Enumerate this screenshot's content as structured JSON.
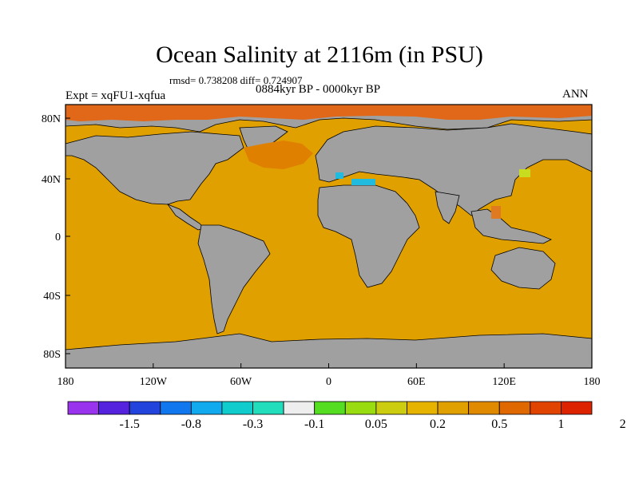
{
  "title": "Ocean Salinity at 2116m (in PSU)",
  "stats_text": "rmsd= 0.738208 diff= 0.724907",
  "period": "0884kyr BP - 0000kyr BP",
  "experiment": "Expt = xqFU1-xqfua",
  "season": "ANN",
  "colors": {
    "land": "#a0a0a0",
    "ocean_main": "#e0a000",
    "arctic": "#e06818",
    "north_atlantic": "#e08000",
    "med": "#22bbe0",
    "japan_sea": "#c8dc20",
    "south_china_sea": "#e07a20"
  },
  "axes": {
    "x_ticks": [
      "180",
      "120W",
      "60W",
      "0",
      "60E",
      "120E",
      "180"
    ],
    "y_ticks": [
      "80N",
      "40N",
      "0",
      "40S",
      "80S"
    ]
  },
  "colorbar": {
    "colors": [
      "#9933ee",
      "#5522dd",
      "#2244dd",
      "#1177ee",
      "#11aaee",
      "#11cccc",
      "#22ddbb",
      "#eeeeee",
      "#55dd22",
      "#99dd11",
      "#cccc11",
      "#e6b400",
      "#e0a000",
      "#e08a00",
      "#e06800",
      "#e04400",
      "#dd2200"
    ],
    "labels": [
      "-1.5",
      "-0.8",
      "-0.3",
      "-0.1",
      "0.05",
      "0.2",
      "0.5",
      "1",
      "2"
    ]
  }
}
